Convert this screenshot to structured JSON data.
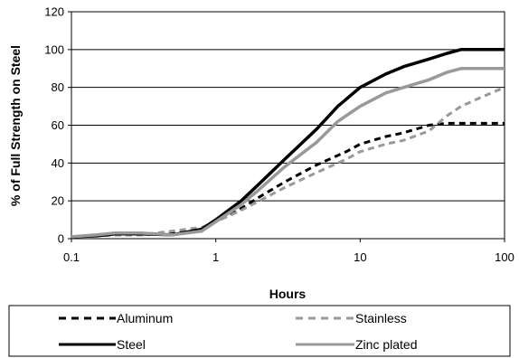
{
  "chart_data": {
    "type": "line",
    "xlabel": "Hours",
    "ylabel": "% of Full Strength on Steel",
    "xscale": "log",
    "xlim": [
      0.1,
      100
    ],
    "ylim": [
      0,
      120
    ],
    "xticks": [
      0.1,
      1,
      10,
      100
    ],
    "xtick_labels": [
      "0.1",
      "1",
      "10",
      "100"
    ],
    "yticks": [
      0,
      20,
      40,
      60,
      80,
      100,
      120
    ],
    "ytick_labels": [
      "0",
      "20",
      "40",
      "60",
      "80",
      "100",
      "120"
    ],
    "grid": "horizontal",
    "legend_position": "bottom",
    "series": [
      {
        "name": "Aluminum",
        "color": "#000000",
        "style": "dashed",
        "x": [
          0.1,
          0.15,
          0.2,
          0.3,
          0.5,
          0.8,
          1,
          1.5,
          2,
          3,
          5,
          8,
          10,
          15,
          20,
          30,
          40,
          50,
          100
        ],
        "y": [
          1,
          1.5,
          2,
          2,
          3,
          5,
          9,
          16,
          22,
          30,
          39,
          46,
          50,
          54,
          56,
          60,
          61,
          61,
          61
        ]
      },
      {
        "name": "Stainless",
        "color": "#999999",
        "style": "dashed",
        "x": [
          0.1,
          0.15,
          0.2,
          0.3,
          0.5,
          0.8,
          1,
          1.5,
          2,
          3,
          5,
          8,
          10,
          15,
          20,
          30,
          40,
          50,
          70,
          100
        ],
        "y": [
          1,
          1.5,
          2,
          2,
          4,
          6,
          9,
          15,
          20,
          27,
          35,
          42,
          46,
          50,
          52,
          57,
          65,
          70,
          75,
          80
        ]
      },
      {
        "name": "Steel",
        "color": "#000000",
        "style": "solid",
        "x": [
          0.1,
          0.15,
          0.2,
          0.3,
          0.5,
          0.8,
          1,
          1.5,
          2,
          3,
          5,
          7,
          10,
          15,
          20,
          30,
          40,
          50,
          100
        ],
        "y": [
          1,
          1.5,
          2.5,
          2.5,
          2,
          5,
          10,
          20,
          29,
          42,
          58,
          70,
          80,
          87,
          91,
          95,
          98,
          100,
          100
        ]
      },
      {
        "name": "Zinc plated",
        "color": "#999999",
        "style": "solid",
        "x": [
          0.1,
          0.15,
          0.2,
          0.3,
          0.5,
          0.8,
          1,
          1.5,
          2,
          3,
          5,
          7,
          10,
          15,
          20,
          30,
          40,
          50,
          100
        ],
        "y": [
          1,
          2,
          3,
          3,
          2,
          4,
          9,
          18,
          26,
          38,
          51,
          62,
          70,
          77,
          80,
          84,
          88,
          90,
          90
        ]
      }
    ]
  }
}
